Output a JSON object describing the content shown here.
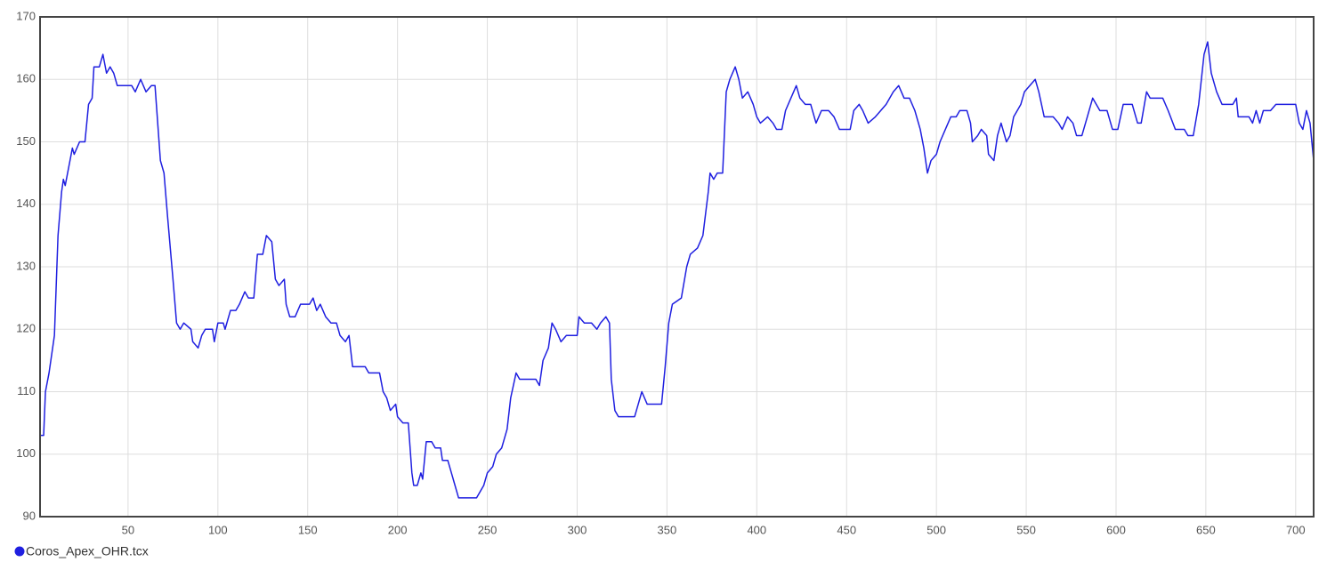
{
  "chart_data": {
    "type": "line",
    "x": [
      1,
      3,
      4,
      6,
      9,
      11,
      13,
      14,
      15,
      17,
      19,
      20,
      23,
      26,
      28,
      30,
      31,
      34,
      36,
      38,
      40,
      42,
      44,
      52,
      54,
      57,
      60,
      63,
      65,
      68,
      70,
      72,
      75,
      77,
      79,
      81,
      85,
      86,
      89,
      91,
      93,
      97,
      98,
      100,
      103,
      104,
      107,
      110,
      112,
      115,
      117,
      120,
      122,
      125,
      127,
      130,
      132,
      134,
      137,
      138,
      140,
      143,
      146,
      151,
      153,
      155,
      157,
      160,
      163,
      166,
      168,
      171,
      173,
      175,
      182,
      184,
      190,
      192,
      194,
      196,
      199,
      200,
      203,
      206,
      208,
      209,
      211,
      213,
      214,
      216,
      219,
      221,
      224,
      225,
      228,
      230,
      232,
      234,
      244,
      246,
      248,
      250,
      253,
      255,
      258,
      261,
      263,
      266,
      268,
      270,
      277,
      279,
      281,
      284,
      286,
      288,
      291,
      294,
      300,
      301,
      304,
      308,
      311,
      313,
      316,
      318,
      319,
      321,
      323,
      332,
      334,
      336,
      339,
      347,
      349,
      351,
      353,
      358,
      361,
      363,
      367,
      370,
      373,
      374,
      376,
      378,
      381,
      383,
      385,
      388,
      390,
      392,
      395,
      398,
      400,
      402,
      406,
      409,
      411,
      414,
      416,
      419,
      422,
      424,
      427,
      430,
      433,
      436,
      440,
      443,
      446,
      452,
      454,
      457,
      459,
      462,
      466,
      469,
      472,
      476,
      479,
      482,
      485,
      488,
      491,
      493,
      495,
      497,
      500,
      502,
      505,
      508,
      511,
      513,
      517,
      519,
      520,
      523,
      525,
      528,
      529,
      532,
      534,
      536,
      539,
      541,
      543,
      547,
      549,
      552,
      555,
      557,
      560,
      565,
      568,
      570,
      573,
      576,
      578,
      581,
      584,
      587,
      591,
      595,
      598,
      601,
      604,
      609,
      612,
      614,
      617,
      619,
      626,
      629,
      633,
      638,
      640,
      643,
      646,
      649,
      651,
      653,
      656,
      659,
      665,
      667,
      668,
      674,
      676,
      678,
      680,
      682,
      686,
      689,
      700,
      702,
      704,
      706,
      708,
      710
    ],
    "series": [
      {
        "name": "Coros_Apex_OHR.tcx",
        "color": "#1f1fe0",
        "values": [
          103,
          103,
          110,
          113,
          119,
          135,
          142,
          144,
          143,
          146,
          149,
          148,
          150,
          150,
          156,
          157,
          162,
          162,
          164,
          161,
          162,
          161,
          159,
          159,
          158,
          160,
          158,
          159,
          159,
          147,
          145,
          138,
          128,
          121,
          120,
          121,
          120,
          118,
          117,
          119,
          120,
          120,
          118,
          121,
          121,
          120,
          123,
          123,
          124,
          126,
          125,
          125,
          132,
          132,
          135,
          134,
          128,
          127,
          128,
          124,
          122,
          122,
          124,
          124,
          125,
          123,
          124,
          122,
          121,
          121,
          119,
          118,
          119,
          114,
          114,
          113,
          113,
          110,
          109,
          107,
          108,
          106,
          105,
          105,
          97,
          95,
          95,
          97,
          96,
          102,
          102,
          101,
          101,
          99,
          99,
          97,
          95,
          93,
          93,
          94,
          95,
          97,
          98,
          100,
          101,
          104,
          109,
          113,
          112,
          112,
          112,
          111,
          115,
          117,
          121,
          120,
          118,
          119,
          119,
          122,
          121,
          121,
          120,
          121,
          122,
          121,
          112,
          107,
          106,
          106,
          108,
          110,
          108,
          108,
          114,
          121,
          124,
          125,
          130,
          132,
          133,
          135,
          142,
          145,
          144,
          145,
          145,
          158,
          160,
          162,
          160,
          157,
          158,
          156,
          154,
          153,
          154,
          153,
          152,
          152,
          155,
          157,
          159,
          157,
          156,
          156,
          153,
          155,
          155,
          154,
          152,
          152,
          155,
          156,
          155,
          153,
          154,
          155,
          156,
          158,
          159,
          157,
          157,
          155,
          152,
          149,
          145,
          147,
          148,
          150,
          152,
          154,
          154,
          155,
          155,
          153,
          150,
          151,
          152,
          151,
          148,
          147,
          151,
          153,
          150,
          151,
          154,
          156,
          158,
          159,
          160,
          158,
          154,
          154,
          153,
          152,
          154,
          153,
          151,
          151,
          154,
          157,
          155,
          155,
          152,
          152,
          156,
          156,
          153,
          153,
          158,
          157,
          157,
          155,
          152,
          152,
          151,
          151,
          156,
          164,
          166,
          161,
          158,
          156,
          156,
          157,
          154,
          154,
          153,
          155,
          153,
          155,
          155,
          156,
          156,
          153,
          152,
          155,
          153,
          147
        ]
      }
    ],
    "xlim": [
      1,
      710
    ],
    "xticks": [
      50,
      100,
      150,
      200,
      250,
      300,
      350,
      400,
      450,
      500,
      550,
      600,
      650,
      700
    ],
    "ylim": [
      90,
      170
    ],
    "yticks": [
      90,
      100,
      110,
      120,
      130,
      140,
      150,
      160,
      170
    ],
    "grid": true,
    "legend": "bottom-left"
  }
}
